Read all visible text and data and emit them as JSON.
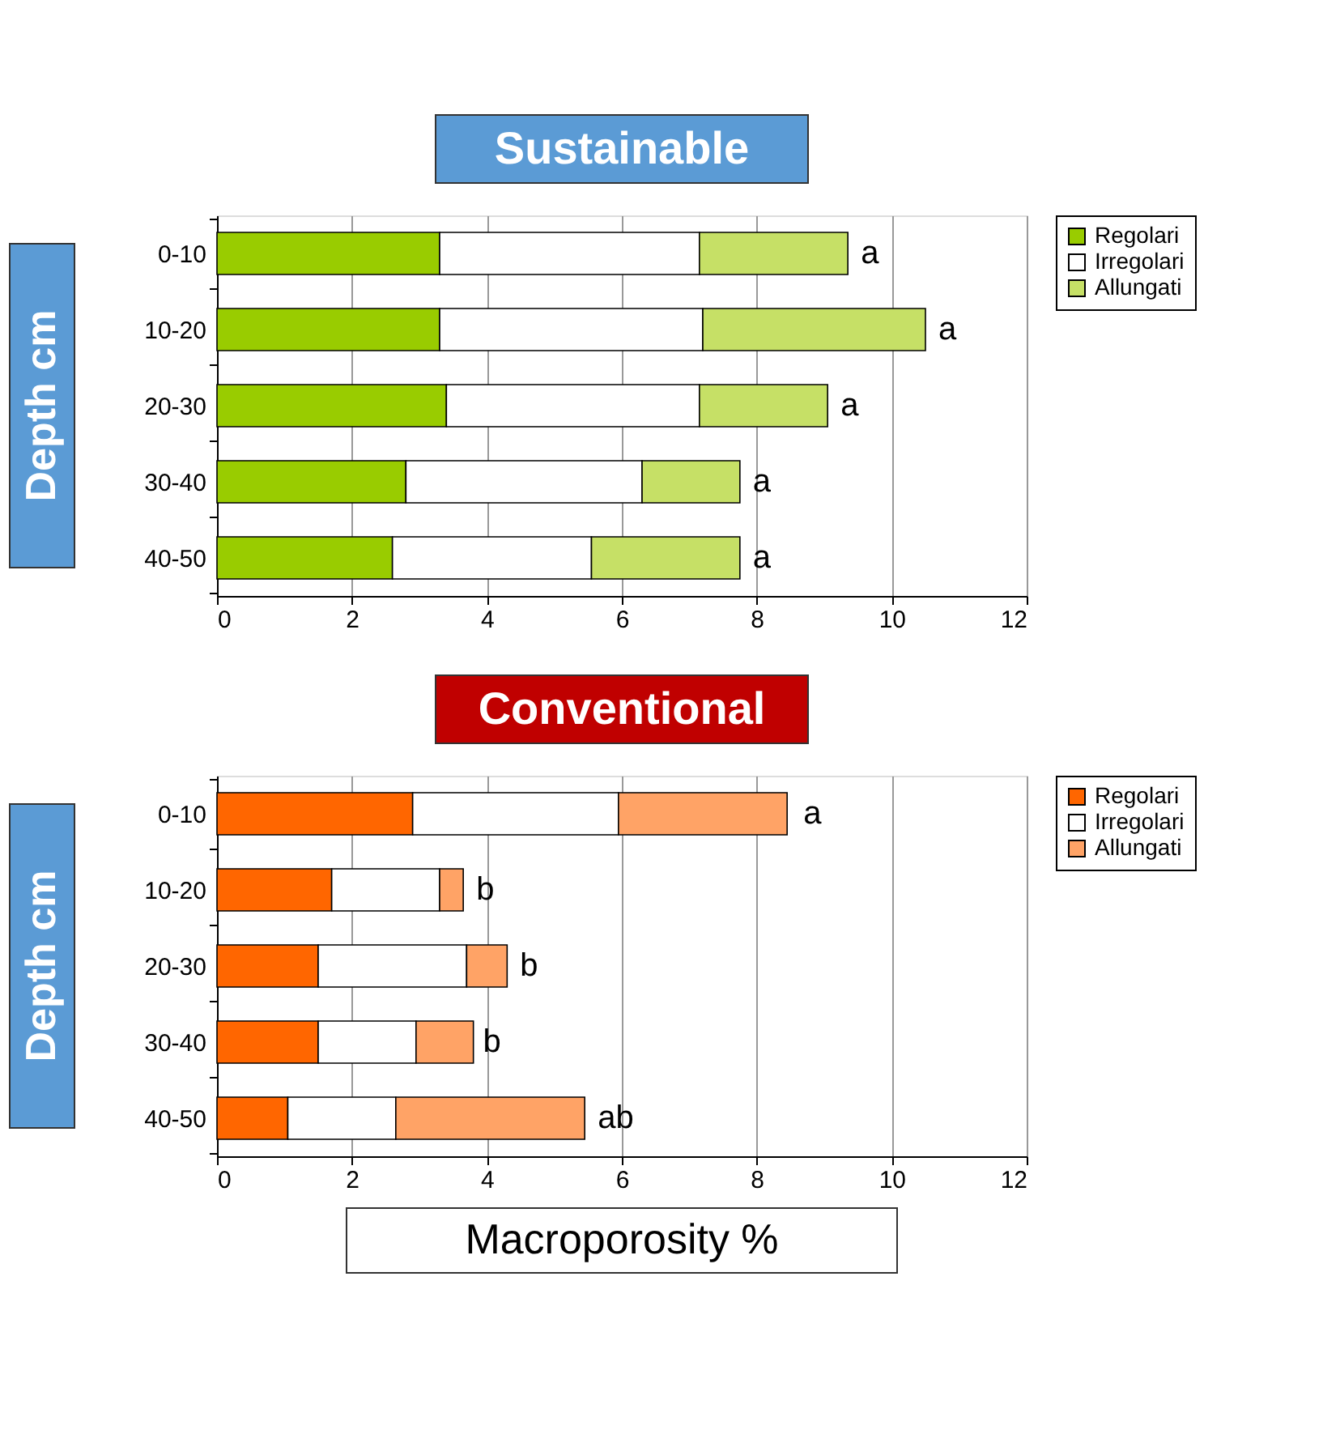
{
  "chart_data": [
    {
      "type": "bar",
      "orientation": "horizontal",
      "stacked": true,
      "title": "Sustainable",
      "ylabel": "Depth cm",
      "categories": [
        "0-10",
        "10-20",
        "20-30",
        "30-40",
        "40-50"
      ],
      "series": [
        {
          "name": "Regolari",
          "color": "#99cc00",
          "values": [
            3.3,
            3.3,
            3.4,
            2.8,
            2.6
          ]
        },
        {
          "name": "Irregolari",
          "color": "#ffffff",
          "values": [
            3.85,
            3.9,
            3.75,
            3.5,
            2.95
          ]
        },
        {
          "name": "Allungati",
          "color": "#c6e066",
          "values": [
            2.2,
            3.3,
            1.9,
            1.45,
            2.2
          ]
        }
      ],
      "xlim": [
        0,
        12
      ],
      "xticks": [
        0,
        2,
        4,
        6,
        8,
        10,
        12
      ],
      "grid": "x",
      "legend": "right",
      "annotations": [
        {
          "text": "a",
          "x": 9.35,
          "y": "0-10"
        },
        {
          "text": "a",
          "x": 10.5,
          "y": "10-20"
        },
        {
          "text": "a",
          "x": 9.05,
          "y": "20-30"
        },
        {
          "text": "a",
          "x": 7.75,
          "y": "30-40"
        },
        {
          "text": "a",
          "x": 7.75,
          "y": "40-50"
        }
      ]
    },
    {
      "type": "bar",
      "orientation": "horizontal",
      "stacked": true,
      "title": "Conventional",
      "ylabel": "Depth cm",
      "xlabel": "Macroporosity %",
      "categories": [
        "0-10",
        "10-20",
        "20-30",
        "30-40",
        "40-50"
      ],
      "series": [
        {
          "name": "Regolari",
          "color": "#ff6600",
          "values": [
            2.9,
            1.7,
            1.5,
            1.5,
            1.05
          ]
        },
        {
          "name": "Irregolari",
          "color": "#ffffff",
          "values": [
            3.05,
            1.6,
            2.2,
            1.45,
            1.6
          ]
        },
        {
          "name": "Allungati",
          "color": "#ffa366",
          "values": [
            2.5,
            0.35,
            0.6,
            0.85,
            2.8
          ]
        }
      ],
      "xlim": [
        0,
        12
      ],
      "xticks": [
        0,
        2,
        4,
        6,
        8,
        10,
        12
      ],
      "grid": "x",
      "legend": "right",
      "annotations": [
        {
          "text": "a",
          "x": 8.5,
          "y": "0-10"
        },
        {
          "text": "b",
          "x": 3.65,
          "y": "10-20"
        },
        {
          "text": "b",
          "x": 4.3,
          "y": "20-30"
        },
        {
          "text": "b",
          "x": 3.75,
          "y": "30-40"
        },
        {
          "text": "ab",
          "x": 5.45,
          "y": "40-50"
        }
      ]
    }
  ]
}
